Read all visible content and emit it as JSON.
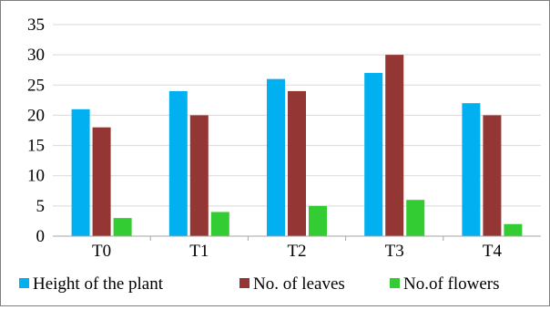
{
  "chart_data": {
    "type": "bar",
    "title": "",
    "xlabel": "",
    "ylabel": "",
    "categories": [
      "T0",
      "T1",
      "T2",
      "T3",
      "T4"
    ],
    "ylim": [
      0,
      35
    ],
    "yticks": [
      0,
      5,
      10,
      15,
      20,
      25,
      30,
      35
    ],
    "grid": "horizontal",
    "legend_position": "bottom",
    "series": [
      {
        "name": "Height of the plant",
        "color": "#00b0f0",
        "values": [
          21,
          24,
          26,
          27,
          22
        ]
      },
      {
        "name": "No. of leaves",
        "color": "#943634",
        "values": [
          18,
          20,
          24,
          30,
          20
        ]
      },
      {
        "name": "No.of flowers",
        "color": "#33cc33",
        "values": [
          3,
          4,
          5,
          6,
          2
        ]
      }
    ]
  }
}
